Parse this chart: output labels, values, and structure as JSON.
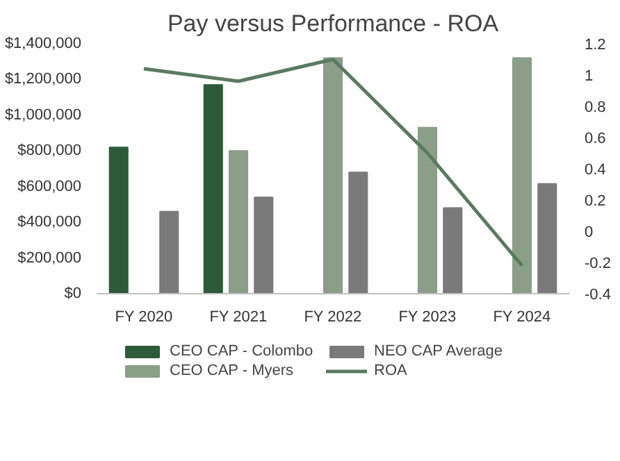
{
  "chart_data": {
    "type": "bar",
    "title": "Pay versus Performance - ROA",
    "categories": [
      "FY 2020",
      "FY 2021",
      "FY 2022",
      "FY 2023",
      "FY 2024"
    ],
    "series": [
      {
        "name": "CEO CAP - Colombo",
        "color": "#2d5a3a",
        "values": [
          820000,
          1170000,
          null,
          null,
          null
        ]
      },
      {
        "name": "CEO CAP - Myers",
        "color": "#8a9e88",
        "values": [
          null,
          800000,
          1320000,
          930000,
          1320000
        ]
      },
      {
        "name": "NEO CAP Average",
        "color": "#7a7a7a",
        "values": [
          460000,
          540000,
          680000,
          480000,
          615000
        ]
      },
      {
        "name": "ROA",
        "type": "line",
        "axis": "y2",
        "color": "#5a7a5e",
        "values": [
          1.04,
          0.96,
          1.1,
          0.5,
          -0.22
        ]
      }
    ],
    "ylim": [
      0,
      1400000
    ],
    "yticks": [
      {
        "value": 0,
        "label": "$0"
      },
      {
        "value": 200000,
        "label": "$200,000"
      },
      {
        "value": 400000,
        "label": "$400,000"
      },
      {
        "value": 600000,
        "label": "$600,000"
      },
      {
        "value": 800000,
        "label": "$800,000"
      },
      {
        "value": 1000000,
        "label": "$1,000,000"
      },
      {
        "value": 1200000,
        "label": "$1,200,000"
      },
      {
        "value": 1400000,
        "label": "$1,400,000"
      }
    ],
    "y2lim": [
      -0.4,
      1.2
    ],
    "y2ticks": [
      -0.4,
      -0.2,
      0,
      0.2,
      0.4,
      0.6,
      0.8,
      1,
      1.2
    ],
    "legend": "bottom",
    "grid": false,
    "marker": "none",
    "line_style": "solid"
  }
}
